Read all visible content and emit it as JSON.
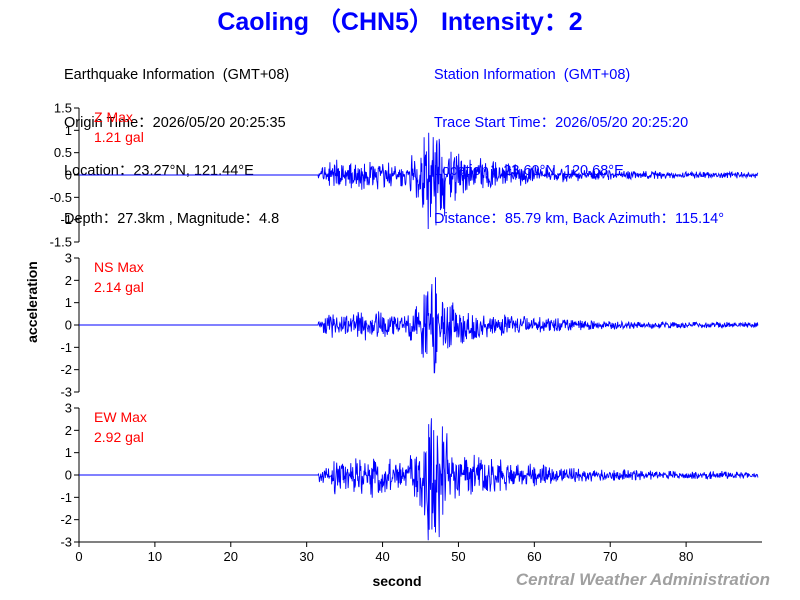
{
  "title": "Caoling （CHN5） Intensity：2",
  "earthquake": {
    "header": "Earthquake Information  (GMT+08)",
    "origin_time": "Origin Time：2026/05/20 20:25:35",
    "location": "Location：23.27°N, 121.44°E",
    "depth_magnitude": "Depth：27.3km , Magnitude：4.8"
  },
  "station": {
    "header": "Station Information  (GMT+08)",
    "trace_start": "Trace Start Time：2026/05/20 20:25:20",
    "location": "Location：23.60°N, 120.68°E",
    "distance": "Distance：85.79 km, Back Azimuth：115.14°"
  },
  "credit": "Central Weather Administration",
  "colors": {
    "title": "#0000ff",
    "trace": "#0000ff",
    "max_label": "#ff0000",
    "credit": "#a0a0a0"
  },
  "chart_data": {
    "type": "line",
    "xlabel": "second",
    "ylabel": "acceleration",
    "xlim": [
      0,
      90
    ],
    "x_ticks": [
      0,
      10,
      20,
      30,
      40,
      50,
      60,
      70,
      80
    ],
    "panels": [
      {
        "component": "Z",
        "max_label": "Z Max",
        "max_value": "1.21 gal",
        "peak": 1.21,
        "ylim": [
          -1.5,
          1.5
        ],
        "y_ticks": [
          1.5,
          1,
          0.5,
          0,
          -0.5,
          -1,
          -1.5
        ],
        "series": [
          {
            "onset_s": 31.5,
            "strong_motion_s": [
              43.5,
              50.5
            ],
            "end_s": 89.5,
            "peak_time_s": 46.0,
            "seed": 11
          }
        ]
      },
      {
        "component": "NS",
        "max_label": "NS Max",
        "max_value": "2.14 gal",
        "peak": 2.14,
        "ylim": [
          -3,
          3
        ],
        "y_ticks": [
          3,
          2,
          1,
          0,
          -1,
          -2,
          -3
        ],
        "series": [
          {
            "onset_s": 31.5,
            "strong_motion_s": [
              43.5,
              50.5
            ],
            "end_s": 89.5,
            "peak_time_s": 47.0,
            "seed": 23
          }
        ]
      },
      {
        "component": "EW",
        "max_label": "EW Max",
        "max_value": "2.92 gal",
        "peak": 2.92,
        "ylim": [
          -3,
          3
        ],
        "y_ticks": [
          3,
          2,
          1,
          0,
          -1,
          -2,
          -3
        ],
        "series": [
          {
            "onset_s": 31.5,
            "strong_motion_s": [
              43.5,
              50.5
            ],
            "end_s": 89.5,
            "peak_time_s": 46.0,
            "seed": 37
          }
        ]
      }
    ]
  }
}
